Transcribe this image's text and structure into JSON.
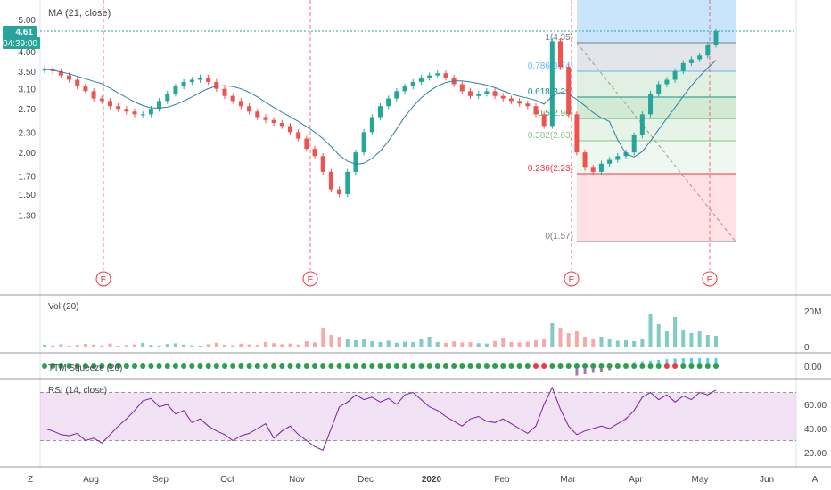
{
  "chart_data": {
    "type": "candlestick",
    "x_ticks": [
      "Aug",
      "Sep",
      "Oct",
      "Nov",
      "Dec",
      "2020",
      "Feb",
      "Mar",
      "Apr",
      "May",
      "Jun"
    ],
    "price_panel": {
      "indicator_label": "MA (21, close)",
      "y_ticks": [
        "5.00",
        "4.00",
        "3.50",
        "3.10",
        "2.70",
        "2.30",
        "2.00",
        "1.70",
        "1.50",
        "1.30"
      ],
      "last_price": "4.61",
      "countdown": "04:39:00",
      "earnings_marker": "E",
      "earnings_count": 4,
      "fibonacci": {
        "levels": [
          {
            "ratio": 1,
            "price": 4.35,
            "label": "1(4.35)"
          },
          {
            "ratio": 0.786,
            "price": 3.74,
            "label": "0.786(3.74)"
          },
          {
            "ratio": 0.618,
            "price": 3.29,
            "label": "0.618(3.29)"
          },
          {
            "ratio": 0.5,
            "price": 2.96,
            "label": "0.5(2.96)"
          },
          {
            "ratio": 0.382,
            "price": 2.63,
            "label": "0.382(2.63)"
          },
          {
            "ratio": 0.236,
            "price": 2.23,
            "label": "0.236(2.23)"
          },
          {
            "ratio": 0,
            "price": 1.57,
            "label": "0(1.57)"
          }
        ]
      },
      "close": [
        3.55,
        3.5,
        3.4,
        3.3,
        3.15,
        3.05,
        2.9,
        2.85,
        2.75,
        2.7,
        2.65,
        2.6,
        2.6,
        2.7,
        2.85,
        3.0,
        3.15,
        3.25,
        3.3,
        3.35,
        3.25,
        3.1,
        2.95,
        2.85,
        2.75,
        2.65,
        2.55,
        2.5,
        2.45,
        2.4,
        2.3,
        2.2,
        2.05,
        1.95,
        1.75,
        1.55,
        1.5,
        1.75,
        2.0,
        2.3,
        2.55,
        2.75,
        2.9,
        3.05,
        3.15,
        3.25,
        3.35,
        3.4,
        3.45,
        3.35,
        3.2,
        3.05,
        2.95,
        3.0,
        3.05,
        2.95,
        2.9,
        2.85,
        2.8,
        2.75,
        2.6,
        2.4,
        4.3,
        3.6,
        2.6,
        2.0,
        1.8,
        1.75,
        1.85,
        1.9,
        1.95,
        2.0,
        2.25,
        2.6,
        3.0,
        3.2,
        3.3,
        3.5,
        3.7,
        3.8,
        3.9,
        4.2,
        4.61
      ]
    },
    "volume_panel": {
      "label": "Vol (20)",
      "y_ticks": [
        "20M",
        "0"
      ],
      "values": [
        1.5,
        1.2,
        1.8,
        1.0,
        1.4,
        2.0,
        1.6,
        1.2,
        2.2,
        1.0,
        1.3,
        1.7,
        2.5,
        1.4,
        1.1,
        1.9,
        2.3,
        1.6,
        1.2,
        1.0,
        1.8,
        2.6,
        1.5,
        1.3,
        2.1,
        1.7,
        1.4,
        3.0,
        2.4,
        1.8,
        2.2,
        1.6,
        3.5,
        2.8,
        11,
        7,
        6,
        5,
        4,
        4.5,
        3.5,
        3.0,
        3.8,
        2.6,
        3.2,
        3.0,
        4.5,
        6.0,
        3.0,
        2.5,
        3.4,
        2.8,
        3.0,
        2.4,
        2.2,
        3.6,
        5.5,
        3.0,
        2.8,
        3.2,
        4.0,
        5.0,
        14,
        11,
        8,
        9,
        6,
        5,
        6,
        4.5,
        3.8,
        4.0,
        3.5,
        5.0,
        19,
        13,
        9,
        17,
        10,
        8,
        9,
        7,
        6.5
      ]
    },
    "ttm_panel": {
      "label": "TTM Squeeze (20)",
      "y_ticks": [
        "0.00"
      ]
    },
    "rsi_panel": {
      "label": "RSI (14, close)",
      "y_ticks": [
        "60.00",
        "40.00",
        "20.00"
      ],
      "bands": [
        30,
        70
      ],
      "values": [
        40,
        38,
        35,
        34,
        36,
        30,
        32,
        28,
        35,
        42,
        48,
        55,
        63,
        65,
        58,
        60,
        52,
        55,
        45,
        48,
        42,
        38,
        35,
        30,
        34,
        36,
        40,
        44,
        32,
        38,
        42,
        35,
        30,
        25,
        22,
        40,
        58,
        62,
        68,
        64,
        66,
        62,
        65,
        60,
        68,
        70,
        64,
        58,
        55,
        50,
        46,
        42,
        48,
        50,
        46,
        45,
        48,
        44,
        40,
        36,
        42,
        60,
        74,
        56,
        42,
        35,
        38,
        40,
        42,
        40,
        44,
        48,
        55,
        66,
        70,
        64,
        68,
        62,
        67,
        64,
        70,
        68,
        72
      ]
    },
    "footer": {
      "left": "Z",
      "right": "A"
    }
  }
}
